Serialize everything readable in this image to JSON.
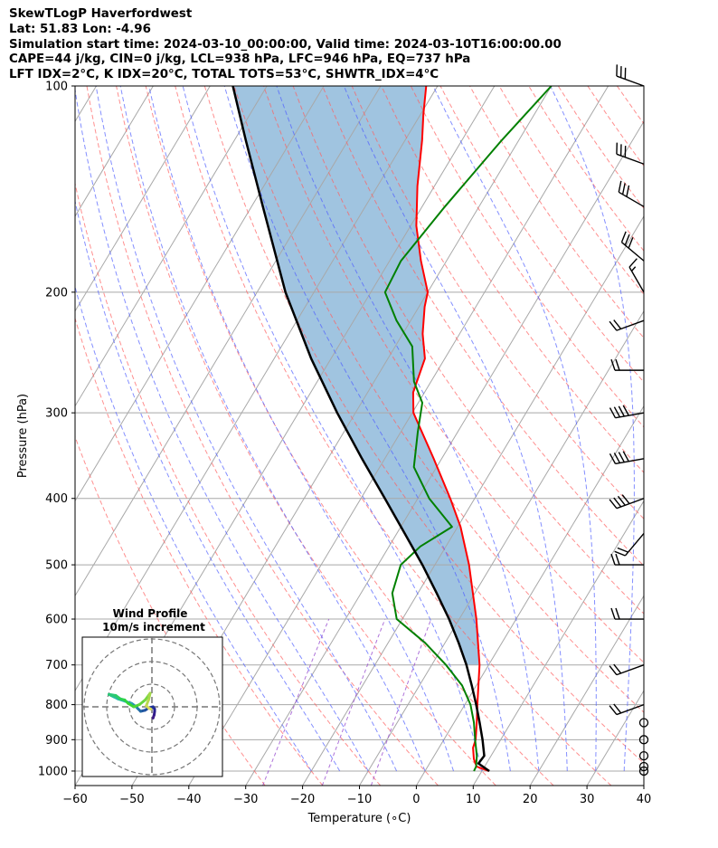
{
  "header": {
    "line1": "SkewTLogP Haverfordwest",
    "line2": "Lat: 51.83   Lon: -4.96",
    "line3": "Simulation start time: 2024-03-10_00:00:00, Valid time: 2024-03-10T16:00:00.00",
    "line4": "CAPE=44 j/kg, CIN=0 j/kg, LCL=938 hPa, LFC=946 hPa, EQ=737 hPa",
    "line5": "LFT IDX=2°C, K IDX=20°C, TOTAL TOTS=53°C, SHWTR_IDX=4°C"
  },
  "chart_data": {
    "type": "line",
    "subtype": "skew-t log-p",
    "xlabel": "Temperature (∘C)",
    "ylabel": "Pressure (hPa)",
    "xlim": [
      -60,
      40
    ],
    "ylim": [
      1050,
      100
    ],
    "x_ticks": [
      -60,
      -50,
      -40,
      -30,
      -20,
      -10,
      0,
      10,
      20,
      30,
      40
    ],
    "x_tick_labels": [
      "−60",
      "−50",
      "−40",
      "−30",
      "−20",
      "−10",
      "0",
      "10",
      "20",
      "30",
      "40"
    ],
    "y_ticks": [
      1000,
      900,
      800,
      700,
      600,
      500,
      400,
      300,
      200,
      100
    ],
    "y_tick_labels": [
      "1000",
      "900",
      "800",
      "700",
      "600",
      "500",
      "400",
      "300",
      "200",
      "100"
    ],
    "colors": {
      "temperature": "#ff0000",
      "dewpoint": "#008000",
      "parcel": "#000000",
      "cape": "#a0c4e0",
      "dry_adiabat": "#ff6060",
      "moist_adiabat": "#5060ff",
      "mixing_ratio": "#9a4fd0",
      "isotherm": "#a8a8a8"
    },
    "series": [
      {
        "name": "Temperature",
        "points": [
          [
            1000,
            11.2
          ],
          [
            985,
            8.6
          ],
          [
            960,
            7.3
          ],
          [
            925,
            6.0
          ],
          [
            900,
            5.6
          ],
          [
            850,
            4.0
          ],
          [
            800,
            2.2
          ],
          [
            700,
            -1.6
          ],
          [
            600,
            -7.0
          ],
          [
            500,
            -14.0
          ],
          [
            440,
            -19.5
          ],
          [
            400,
            -24.3
          ],
          [
            350,
            -31.4
          ],
          [
            300,
            -39.8
          ],
          [
            280,
            -42.0
          ],
          [
            250,
            -43.5
          ],
          [
            230,
            -46.5
          ],
          [
            210,
            -49.0
          ],
          [
            200,
            -50.0
          ],
          [
            180,
            -54.5
          ],
          [
            160,
            -59.0
          ],
          [
            140,
            -63.0
          ],
          [
            120,
            -67.0
          ],
          [
            110,
            -69.5
          ],
          [
            100,
            -72.0
          ]
        ]
      },
      {
        "name": "Dewpoint",
        "points": [
          [
            1000,
            8.6
          ],
          [
            985,
            8.5
          ],
          [
            950,
            7.5
          ],
          [
            900,
            5.5
          ],
          [
            850,
            3.5
          ],
          [
            800,
            1.0
          ],
          [
            750,
            -2.5
          ],
          [
            700,
            -7.5
          ],
          [
            650,
            -13.5
          ],
          [
            600,
            -21.0
          ],
          [
            550,
            -24.5
          ],
          [
            500,
            -26.0
          ],
          [
            470,
            -24.5
          ],
          [
            440,
            -21.0
          ],
          [
            400,
            -28.0
          ],
          [
            360,
            -34.0
          ],
          [
            320,
            -37.0
          ],
          [
            290,
            -39.3
          ],
          [
            270,
            -43.0
          ],
          [
            240,
            -47.0
          ],
          [
            220,
            -52.5
          ],
          [
            200,
            -57.5
          ],
          [
            180,
            -58.0
          ],
          [
            150,
            -56.0
          ],
          [
            120,
            -53.0
          ],
          [
            100,
            -50.0
          ]
        ]
      },
      {
        "name": "Parcel",
        "points": [
          [
            1000,
            11.3
          ],
          [
            975,
            8.6
          ],
          [
            950,
            8.8
          ],
          [
            900,
            6.8
          ],
          [
            850,
            4.5
          ],
          [
            800,
            2.0
          ],
          [
            750,
            -0.8
          ],
          [
            700,
            -3.9
          ],
          [
            650,
            -7.6
          ],
          [
            600,
            -11.8
          ],
          [
            550,
            -16.7
          ],
          [
            500,
            -22.2
          ],
          [
            450,
            -28.6
          ],
          [
            400,
            -35.8
          ],
          [
            350,
            -44.0
          ],
          [
            300,
            -53.2
          ],
          [
            250,
            -63.5
          ],
          [
            200,
            -75.0
          ],
          [
            150,
            -88.0
          ],
          [
            120,
            -98.0
          ],
          [
            100,
            -106.0
          ]
        ]
      }
    ],
    "wind_barbs": [
      {
        "p": 100,
        "dir": 290,
        "spd": 30
      },
      {
        "p": 130,
        "dir": 290,
        "spd": 30
      },
      {
        "p": 150,
        "dir": 300,
        "spd": 30
      },
      {
        "p": 180,
        "dir": 310,
        "spd": 30
      },
      {
        "p": 200,
        "dir": 330,
        "spd": 15
      },
      {
        "p": 220,
        "dir": 250,
        "spd": 20
      },
      {
        "p": 260,
        "dir": 270,
        "spd": 20
      },
      {
        "p": 300,
        "dir": 260,
        "spd": 40
      },
      {
        "p": 350,
        "dir": 260,
        "spd": 40
      },
      {
        "p": 400,
        "dir": 250,
        "spd": 40
      },
      {
        "p": 450,
        "dir": 220,
        "spd": 20
      },
      {
        "p": 500,
        "dir": 270,
        "spd": 20
      },
      {
        "p": 600,
        "dir": 270,
        "spd": 20
      },
      {
        "p": 700,
        "dir": 250,
        "spd": 20
      },
      {
        "p": 800,
        "dir": 250,
        "spd": 20
      },
      {
        "p": 850,
        "dir": 0,
        "spd": 0
      },
      {
        "p": 900,
        "dir": 0,
        "spd": 0
      },
      {
        "p": 950,
        "dir": 0,
        "spd": 0
      },
      {
        "p": 985,
        "dir": 0,
        "spd": 0
      },
      {
        "p": 1000,
        "dir": 0,
        "spd": 0
      }
    ],
    "hodograph": {
      "title_line1": "Wind Profile",
      "title_line2": "10m/s increment",
      "u": [
        0.5,
        1.0,
        1.2,
        1.2,
        0.5,
        -1.5,
        -3.0,
        -5.0,
        -6.0,
        -7.0,
        -9.0,
        -12.0,
        -15.0,
        -17.0,
        -18.0,
        -19.0,
        -16.0,
        -14.0,
        -12.0,
        -10.5,
        -8.0,
        -5.5,
        -3.0,
        -1.5,
        -0.8,
        -1.5,
        -2.5,
        -1.5,
        -0.5
      ],
      "v": [
        -5.0,
        -3.5,
        -2.0,
        -1.0,
        0.0,
        -0.5,
        -1.5,
        -2.0,
        -1.0,
        0.0,
        1.5,
        2.5,
        3.5,
        4.5,
        5.0,
        5.5,
        5.0,
        3.5,
        3.0,
        1.5,
        0.0,
        1.0,
        3.0,
        5.0,
        6.0,
        3.0,
        0.5,
        -0.5,
        -1.0
      ]
    }
  }
}
